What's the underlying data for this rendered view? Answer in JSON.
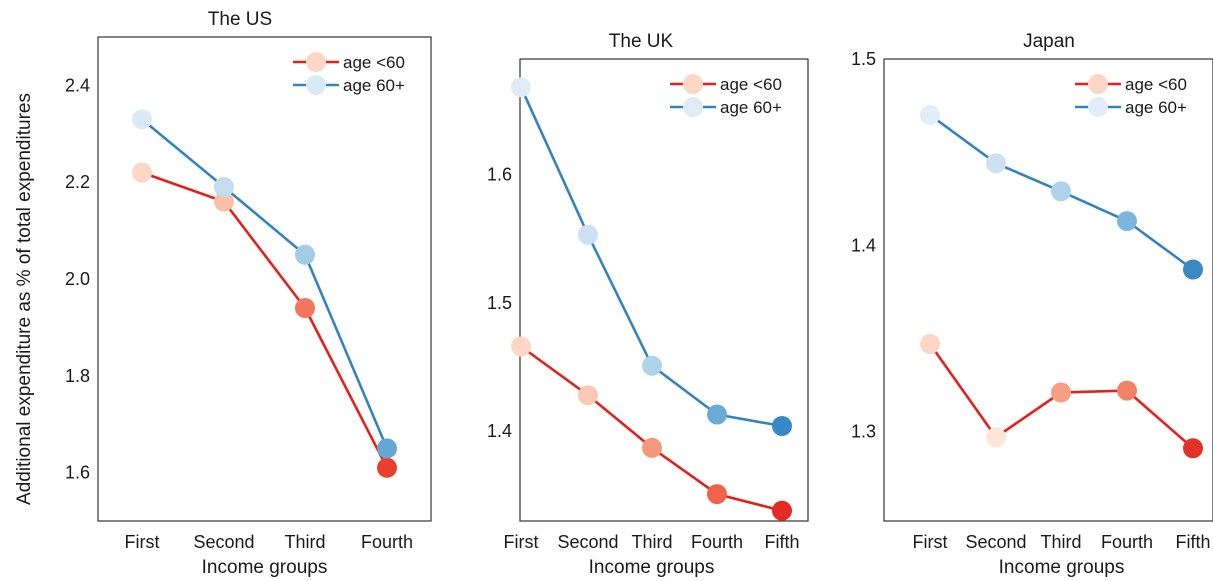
{
  "figure": {
    "ylabel": "Additional expenditure as % of total expenditures"
  },
  "chart_data": [
    {
      "type": "line",
      "title": "The US",
      "xlabel": "Income groups",
      "ylabel": "Additional expenditure as % of total expenditures",
      "categories": [
        "First",
        "Second",
        "Third",
        "Fourth"
      ],
      "ylim": [
        1.5,
        2.5
      ],
      "yticks": [
        1.6,
        1.8,
        2.0,
        2.2,
        2.4
      ],
      "ytick_labels": [
        "1.6",
        "1.8",
        "2.0",
        "2.2",
        "2.4"
      ],
      "legend_position": "top-right",
      "series": [
        {
          "name": "age <60",
          "values": [
            2.22,
            2.16,
            1.94,
            1.61
          ],
          "line_color": "#e32119",
          "marker_colors": [
            "#fcd7c5",
            "#f9c0a6",
            "#f5765e",
            "#e8402e"
          ]
        },
        {
          "name": "age 60+",
          "values": [
            2.33,
            2.19,
            2.05,
            1.65
          ],
          "line_color": "#3383c4",
          "marker_colors": [
            "#dbe9f7",
            "#c4dcf0",
            "#a3cbe6",
            "#63a7d4"
          ]
        }
      ]
    },
    {
      "type": "line",
      "title": "The UK",
      "xlabel": "Income groups",
      "categories": [
        "First",
        "Second",
        "Third",
        "Fourth",
        "Fifth"
      ],
      "ylim": [
        1.33,
        1.69
      ],
      "yticks": [
        1.4,
        1.5,
        1.6
      ],
      "ytick_labels": [
        "1.4",
        "1.5",
        "1.6"
      ],
      "legend_position": "top-right",
      "series": [
        {
          "name": "age <60",
          "values": [
            1.466,
            1.428,
            1.387,
            1.351,
            1.338
          ],
          "line_color": "#e32119",
          "marker_colors": [
            "#fcd7c5",
            "#fbc9b2",
            "#f7987c",
            "#f0624a",
            "#e32b23"
          ]
        },
        {
          "name": "age 60+",
          "values": [
            1.668,
            1.553,
            1.451,
            1.413,
            1.404
          ],
          "line_color": "#3383c4",
          "marker_colors": [
            "#dfecf8",
            "#cbe0f2",
            "#b0d2ea",
            "#6aabd6",
            "#3887c7"
          ]
        }
      ]
    },
    {
      "type": "line",
      "title": "Japan",
      "xlabel": "Income groups",
      "categories": [
        "First",
        "Second",
        "Third",
        "Fourth",
        "Fifth"
      ],
      "ylim": [
        1.252,
        1.5
      ],
      "yticks": [
        1.3,
        1.4,
        1.5
      ],
      "ytick_labels": [
        "1.3",
        "1.4",
        "1.5"
      ],
      "legend_position": "top-right",
      "series": [
        {
          "name": "age <60",
          "values": [
            1.347,
            1.297,
            1.321,
            1.322,
            1.291
          ],
          "line_color": "#e32119",
          "marker_colors": [
            "#fcd7c5",
            "#fde5d7",
            "#f79f84",
            "#f28266",
            "#e33225"
          ]
        },
        {
          "name": "age 60+",
          "values": [
            1.47,
            1.444,
            1.429,
            1.413,
            1.387
          ],
          "line_color": "#3383c4",
          "marker_colors": [
            "#e1edf8",
            "#cde1f3",
            "#afd1ea",
            "#7db6dd",
            "#3a88c6"
          ]
        }
      ]
    }
  ]
}
